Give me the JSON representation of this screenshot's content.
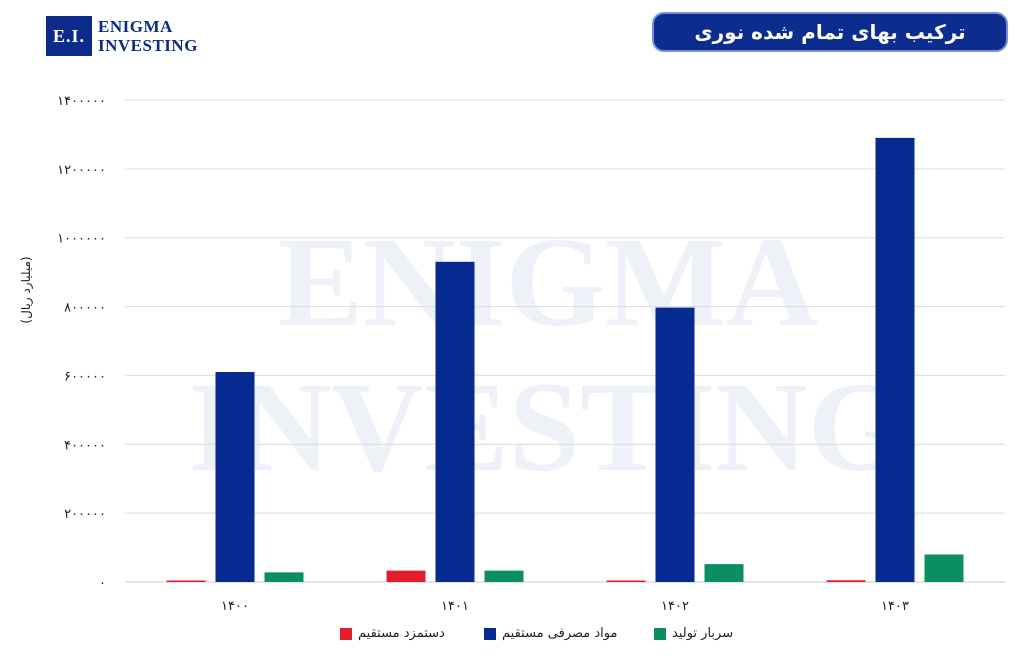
{
  "logo": {
    "abbr": "E.I.",
    "line1": "Enigma",
    "line2": "Investing"
  },
  "header": {
    "title": "ترکیب بهای تمام شده نوری"
  },
  "watermark": {
    "line1": "ENIGMA",
    "line2": "INVESTING"
  },
  "colors": {
    "dastmozd": "#e11d2a",
    "mavad": "#062a8f",
    "sarbar": "#0b8f61",
    "title_bg": "#0d2c8f"
  },
  "chart_data": {
    "type": "bar",
    "title": "ترکیب بهای تمام شده نوری",
    "ylabel": "(میلیارد ریال)",
    "xlabel": "",
    "categories": [
      "۱۴۰۰",
      "۱۴۰۱",
      "۱۴۰۲",
      "۱۴۰۳"
    ],
    "ylim": [
      0,
      1400000
    ],
    "yticks": [
      0,
      200000,
      400000,
      600000,
      800000,
      1000000,
      1200000,
      1400000
    ],
    "ytick_labels": [
      "۰",
      "۲۰۰۰۰۰",
      "۴۰۰۰۰۰",
      "۶۰۰۰۰۰",
      "۸۰۰۰۰۰",
      "۱۰۰۰۰۰۰",
      "۱۲۰۰۰۰۰",
      "۱۴۰۰۰۰۰"
    ],
    "grid": true,
    "legend_position": "bottom",
    "series": [
      {
        "name": "دستمزد مستقیم",
        "color": "#e11d2a",
        "values": [
          3000,
          33000,
          4000,
          5000
        ]
      },
      {
        "name": "مواد مصرفی مستقیم",
        "color": "#062a8f",
        "values": [
          610000,
          930000,
          797000,
          1290000
        ]
      },
      {
        "name": "سربار تولید",
        "color": "#0b8f61",
        "values": [
          28000,
          33000,
          52000,
          80000
        ]
      }
    ]
  }
}
